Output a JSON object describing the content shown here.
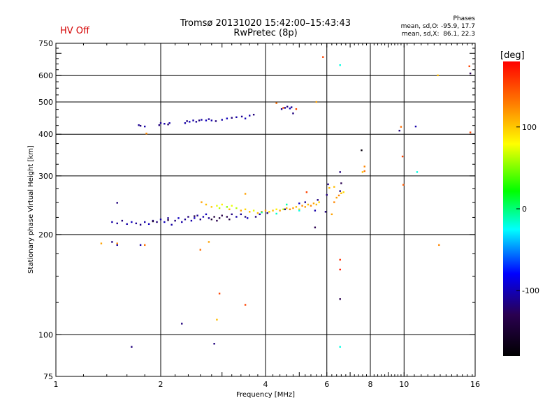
{
  "header": {
    "title": "Tromsø 20131020 15:42:00–15:43:43",
    "subtitle": "RwPretec (8p)",
    "status": "HV Off",
    "status_color": "#d40000"
  },
  "phases": {
    "title": "Phases",
    "o_line": "mean, sd,O: -95.9, 17.7",
    "x_line": "mean, sd,X:  86.1, 22.3"
  },
  "colorbar": {
    "label": "[deg]",
    "ticks": [
      "100",
      "0",
      "-100"
    ],
    "tick_values": [
      100,
      0,
      -100
    ],
    "range": [
      -180,
      180
    ]
  },
  "chart_data": {
    "type": "scatter",
    "xlabel": "Frequency [MHz]",
    "ylabel": "Stationary phase Virtual Height [km]",
    "x_scale": "log",
    "y_scale": "log",
    "xlim": [
      1,
      16
    ],
    "ylim": [
      75,
      750
    ],
    "x_ticks": [
      1,
      2,
      4,
      6,
      8,
      10,
      16
    ],
    "x_tick_labels": [
      "1",
      "2",
      "4",
      "6",
      "8",
      "10",
      "16"
    ],
    "y_ticks": [
      75,
      100,
      200,
      300,
      400,
      500,
      600,
      750
    ],
    "y_tick_labels": [
      "75",
      "100",
      "200",
      "300",
      "400",
      "500",
      "600",
      "750"
    ],
    "grid_x": [
      2,
      4,
      6,
      8,
      10
    ],
    "grid_y": [
      100,
      200,
      300,
      400,
      500,
      600
    ],
    "points": [
      [
        1.73,
        426,
        -105
      ],
      [
        1.75,
        424,
        -110
      ],
      [
        1.8,
        422,
        -100
      ],
      [
        1.98,
        426,
        -110
      ],
      [
        2.0,
        432,
        -105
      ],
      [
        2.05,
        430,
        -100
      ],
      [
        2.1,
        428,
        -115
      ],
      [
        2.12,
        432,
        -100
      ],
      [
        2.35,
        432,
        -100
      ],
      [
        2.38,
        438,
        -110
      ],
      [
        2.42,
        436,
        -95
      ],
      [
        2.48,
        440,
        -100
      ],
      [
        2.53,
        436,
        -105
      ],
      [
        2.58,
        440,
        -110
      ],
      [
        2.62,
        442,
        -100
      ],
      [
        2.7,
        440,
        -95
      ],
      [
        2.75,
        444,
        -105
      ],
      [
        2.8,
        440,
        -100
      ],
      [
        2.88,
        438,
        -110
      ],
      [
        3.0,
        442,
        -100
      ],
      [
        3.1,
        446,
        -95
      ],
      [
        3.2,
        448,
        -110
      ],
      [
        3.3,
        450,
        -100
      ],
      [
        3.42,
        452,
        -105
      ],
      [
        3.5,
        446,
        -95
      ],
      [
        3.6,
        455,
        -100
      ],
      [
        3.7,
        458,
        -110
      ],
      [
        4.45,
        476,
        -105
      ],
      [
        4.55,
        480,
        -100
      ],
      [
        4.62,
        484,
        -110
      ],
      [
        4.7,
        478,
        -95
      ],
      [
        4.75,
        482,
        -105
      ],
      [
        4.8,
        462,
        -110
      ],
      [
        1.82,
        402,
        120
      ],
      [
        4.3,
        496,
        130
      ],
      [
        4.5,
        480,
        140
      ],
      [
        4.9,
        476,
        150
      ],
      [
        5.6,
        500,
        110
      ],
      [
        5.85,
        682,
        150
      ],
      [
        6.55,
        645,
        -20
      ],
      [
        1.5,
        249,
        -110
      ],
      [
        1.45,
        218,
        -100
      ],
      [
        1.5,
        216,
        -105
      ],
      [
        1.55,
        220,
        -110
      ],
      [
        1.6,
        215,
        -100
      ],
      [
        1.65,
        218,
        -95
      ],
      [
        1.7,
        216,
        -105
      ],
      [
        1.75,
        214,
        -110
      ],
      [
        1.8,
        218,
        -100
      ],
      [
        1.85,
        215,
        -95
      ],
      [
        1.9,
        220,
        -105
      ],
      [
        1.95,
        218,
        -110
      ],
      [
        2.0,
        222,
        -100
      ],
      [
        2.05,
        218,
        -95
      ],
      [
        2.1,
        224,
        -105
      ],
      [
        2.15,
        214,
        -100
      ],
      [
        2.2,
        220,
        -110
      ],
      [
        2.25,
        224,
        -95
      ],
      [
        2.3,
        218,
        -100
      ],
      [
        2.35,
        222,
        -105
      ],
      [
        2.4,
        226,
        -110
      ],
      [
        2.45,
        220,
        -100
      ],
      [
        2.5,
        224,
        -95
      ],
      [
        2.55,
        228,
        -105
      ],
      [
        2.6,
        222,
        -110
      ],
      [
        2.65,
        226,
        -100
      ],
      [
        2.7,
        230,
        -95
      ],
      [
        2.75,
        224,
        -105
      ],
      [
        2.8,
        222,
        -140
      ],
      [
        2.85,
        226,
        -130
      ],
      [
        2.9,
        220,
        -120
      ],
      [
        2.95,
        224,
        -135
      ],
      [
        3.0,
        228,
        -125
      ],
      [
        3.1,
        226,
        -120
      ],
      [
        3.15,
        222,
        -130
      ],
      [
        3.2,
        230,
        -110
      ],
      [
        3.3,
        226,
        -100
      ],
      [
        3.4,
        230,
        -105
      ],
      [
        3.5,
        226,
        -110
      ],
      [
        3.55,
        224,
        -95
      ],
      [
        1.9,
        219,
        -140
      ],
      [
        2.1,
        221,
        -130
      ],
      [
        2.5,
        227,
        -125
      ],
      [
        2.62,
        250,
        110
      ],
      [
        2.7,
        246,
        100
      ],
      [
        2.8,
        242,
        95
      ],
      [
        2.9,
        244,
        70
      ],
      [
        2.95,
        240,
        60
      ],
      [
        3.0,
        246,
        80
      ],
      [
        3.1,
        242,
        50
      ],
      [
        3.15,
        238,
        100
      ],
      [
        3.2,
        244,
        70
      ],
      [
        3.3,
        240,
        60
      ],
      [
        3.4,
        236,
        110
      ],
      [
        3.5,
        238,
        90
      ],
      [
        3.6,
        234,
        100
      ],
      [
        3.7,
        236,
        70
      ],
      [
        3.8,
        232,
        100
      ],
      [
        3.9,
        234,
        120
      ],
      [
        4.0,
        236,
        110
      ],
      [
        4.1,
        234,
        90
      ],
      [
        4.2,
        236,
        100
      ],
      [
        4.3,
        238,
        80
      ],
      [
        4.4,
        236,
        110
      ],
      [
        4.5,
        238,
        60
      ],
      [
        4.6,
        240,
        100
      ],
      [
        4.7,
        238,
        120
      ],
      [
        4.8,
        240,
        110
      ],
      [
        4.9,
        242,
        100
      ],
      [
        5.0,
        238,
        90
      ],
      [
        5.1,
        244,
        120
      ],
      [
        5.2,
        242,
        110
      ],
      [
        5.3,
        246,
        100
      ],
      [
        5.4,
        244,
        120
      ],
      [
        5.5,
        248,
        110
      ],
      [
        5.6,
        246,
        100
      ],
      [
        5.7,
        250,
        90
      ],
      [
        4.6,
        246,
        -10
      ],
      [
        5.0,
        236,
        -20
      ],
      [
        3.9,
        233,
        -5
      ],
      [
        4.3,
        231,
        -15
      ],
      [
        4.55,
        238,
        -110
      ],
      [
        5.2,
        250,
        -105
      ],
      [
        5.0,
        248,
        -95
      ],
      [
        5.65,
        254,
        -110
      ],
      [
        5.55,
        236,
        -100
      ],
      [
        3.75,
        226,
        -110
      ],
      [
        3.85,
        230,
        -100
      ],
      [
        4.05,
        232,
        -110
      ],
      [
        6.3,
        250,
        120
      ],
      [
        6.4,
        258,
        110
      ],
      [
        6.5,
        262,
        120
      ],
      [
        6.6,
        266,
        100
      ],
      [
        6.7,
        268,
        90
      ],
      [
        6.3,
        278,
        100
      ],
      [
        6.55,
        270,
        -110
      ],
      [
        6.6,
        285,
        -120
      ],
      [
        6.2,
        230,
        110
      ],
      [
        5.95,
        234,
        -110
      ],
      [
        6.05,
        283,
        -110
      ],
      [
        6.1,
        276,
        100
      ],
      [
        6.55,
        308,
        -110
      ],
      [
        6.0,
        263,
        -110
      ],
      [
        5.55,
        210,
        -120
      ],
      [
        3.5,
        265,
        110
      ],
      [
        5.25,
        268,
        150
      ],
      [
        7.55,
        358,
        -170
      ],
      [
        7.7,
        320,
        120
      ],
      [
        7.6,
        308,
        100
      ],
      [
        7.7,
        310,
        130
      ],
      [
        9.7,
        410,
        -110
      ],
      [
        9.8,
        421,
        130
      ],
      [
        9.9,
        343,
        150
      ],
      [
        9.95,
        282,
        140
      ],
      [
        10.8,
        422,
        -100
      ],
      [
        10.9,
        308,
        -20
      ],
      [
        12.5,
        601,
        100
      ],
      [
        15.4,
        640,
        150
      ],
      [
        15.5,
        609,
        -120
      ],
      [
        15.5,
        405,
        150
      ],
      [
        1.35,
        188,
        110
      ],
      [
        1.45,
        190,
        -110
      ],
      [
        1.5,
        186,
        -100
      ],
      [
        1.5,
        188,
        120
      ],
      [
        1.75,
        186,
        -100
      ],
      [
        1.8,
        186,
        130
      ],
      [
        2.6,
        180,
        130
      ],
      [
        2.75,
        190,
        110
      ],
      [
        2.95,
        133,
        150
      ],
      [
        3.5,
        123,
        150
      ],
      [
        2.9,
        111,
        100
      ],
      [
        2.3,
        108,
        -110
      ],
      [
        2.85,
        94,
        -110
      ],
      [
        1.65,
        92,
        -110
      ],
      [
        6.55,
        92,
        -20
      ],
      [
        6.55,
        168,
        160
      ],
      [
        6.55,
        157,
        170
      ],
      [
        6.55,
        128,
        -120
      ],
      [
        12.6,
        186,
        120
      ]
    ]
  }
}
